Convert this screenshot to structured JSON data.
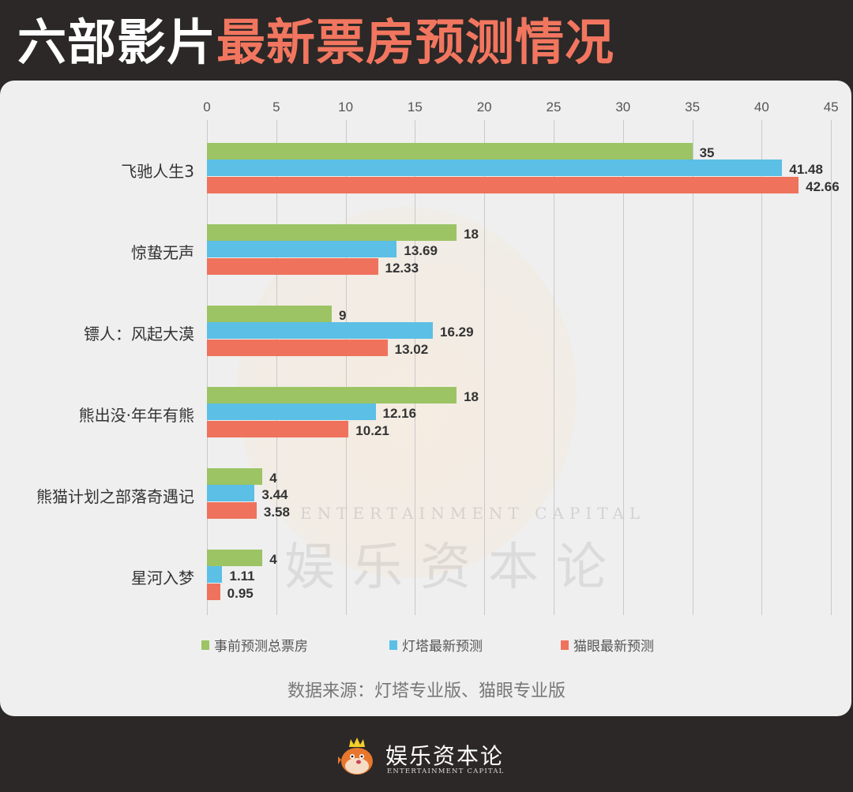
{
  "title": {
    "part1": "六部影片",
    "part2": "最新票房预测情况",
    "part1_color": "#ffffff",
    "part2_color": "#f2765f"
  },
  "chart_data": {
    "type": "bar",
    "orientation": "horizontal",
    "title": "六部影片最新票房预测情况",
    "xlabel": "",
    "ylabel": "",
    "xlim": [
      0,
      45
    ],
    "x_ticks": [
      0,
      5,
      10,
      15,
      20,
      25,
      30,
      35,
      40,
      45
    ],
    "grid": true,
    "legend_position": "bottom",
    "categories": [
      "飞驰人生3",
      "惊蛰无声",
      "镖人：风起大漠",
      "熊出没·年年有熊",
      "熊猫计划之部落奇遇记",
      "星河入梦"
    ],
    "series": [
      {
        "name": "事前预测总票房",
        "color": "#9cc464",
        "values": [
          35,
          18,
          9,
          18,
          4,
          4
        ]
      },
      {
        "name": "灯塔最新预测",
        "color": "#5bbfe6",
        "values": [
          41.48,
          13.69,
          16.29,
          12.16,
          3.44,
          1.11
        ]
      },
      {
        "name": "猫眼最新预测",
        "color": "#ef725c",
        "values": [
          42.66,
          12.33,
          13.02,
          10.21,
          3.58,
          0.95
        ]
      }
    ],
    "value_labels": [
      [
        "35",
        "41.48",
        "42.66"
      ],
      [
        "18",
        "13.69",
        "12.33"
      ],
      [
        "9",
        "16.29",
        "13.02"
      ],
      [
        "18",
        "12.16",
        "10.21"
      ],
      [
        "4",
        "3.44",
        "3.58"
      ],
      [
        "4",
        "1.11",
        "0.95"
      ]
    ]
  },
  "source_note": "数据来源：灯塔专业版、猫眼专业版",
  "watermark": {
    "cn": "娱乐资本论",
    "en": "ENTERTAINMENT CAPITAL"
  },
  "footer": {
    "logo_cn": "娱乐资本论",
    "logo_en": "ENTERTAINMENT CAPITAL",
    "logo_icon": "crowned-pufferfish-mascot-icon"
  }
}
